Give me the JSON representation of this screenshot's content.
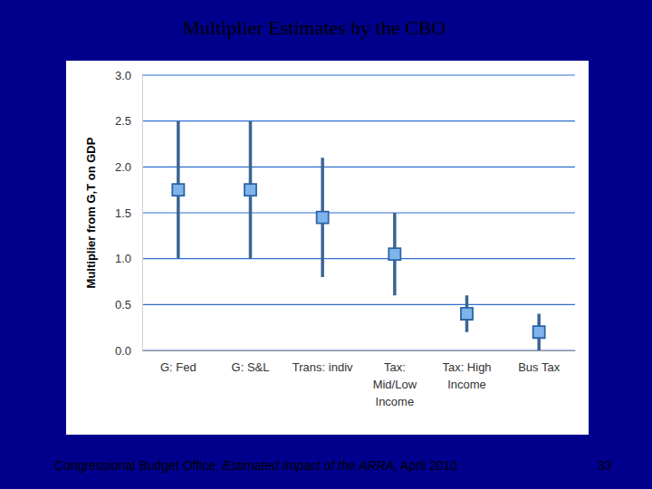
{
  "chart_data": {
    "type": "point",
    "title": "Multiplier Estimates by the CBO",
    "y_label": "Multiplier from G,T on GDP",
    "categories": [
      "G: Fed",
      "G: S&L",
      "Trans: indiv",
      "Tax:\nMid/Low\nIncome",
      "Tax: High\nIncome",
      "Bus Tax"
    ],
    "values": [
      1.75,
      1.75,
      1.45,
      1.05,
      0.4,
      0.2
    ],
    "low": [
      1.0,
      1.0,
      0.8,
      0.6,
      0.2,
      0.0
    ],
    "high": [
      2.5,
      2.5,
      2.1,
      1.5,
      0.6,
      0.4
    ],
    "ylim": [
      0,
      3
    ],
    "yticks": [
      {
        "value": 0,
        "label": "0.0"
      },
      0.5,
      {
        "value": 1,
        "label": "1.0"
      },
      1.5,
      {
        "value": 2,
        "label": "2.0"
      },
      2.5,
      {
        "value": 3,
        "label": "3.0"
      }
    ],
    "grid": true,
    "marker": "square",
    "color": "#7eb4ea",
    "source": [
      "Congressional Budget Office, ",
      "Estimated Impact of the ARRA",
      ", April 2010"
    ],
    "page": 33
  }
}
